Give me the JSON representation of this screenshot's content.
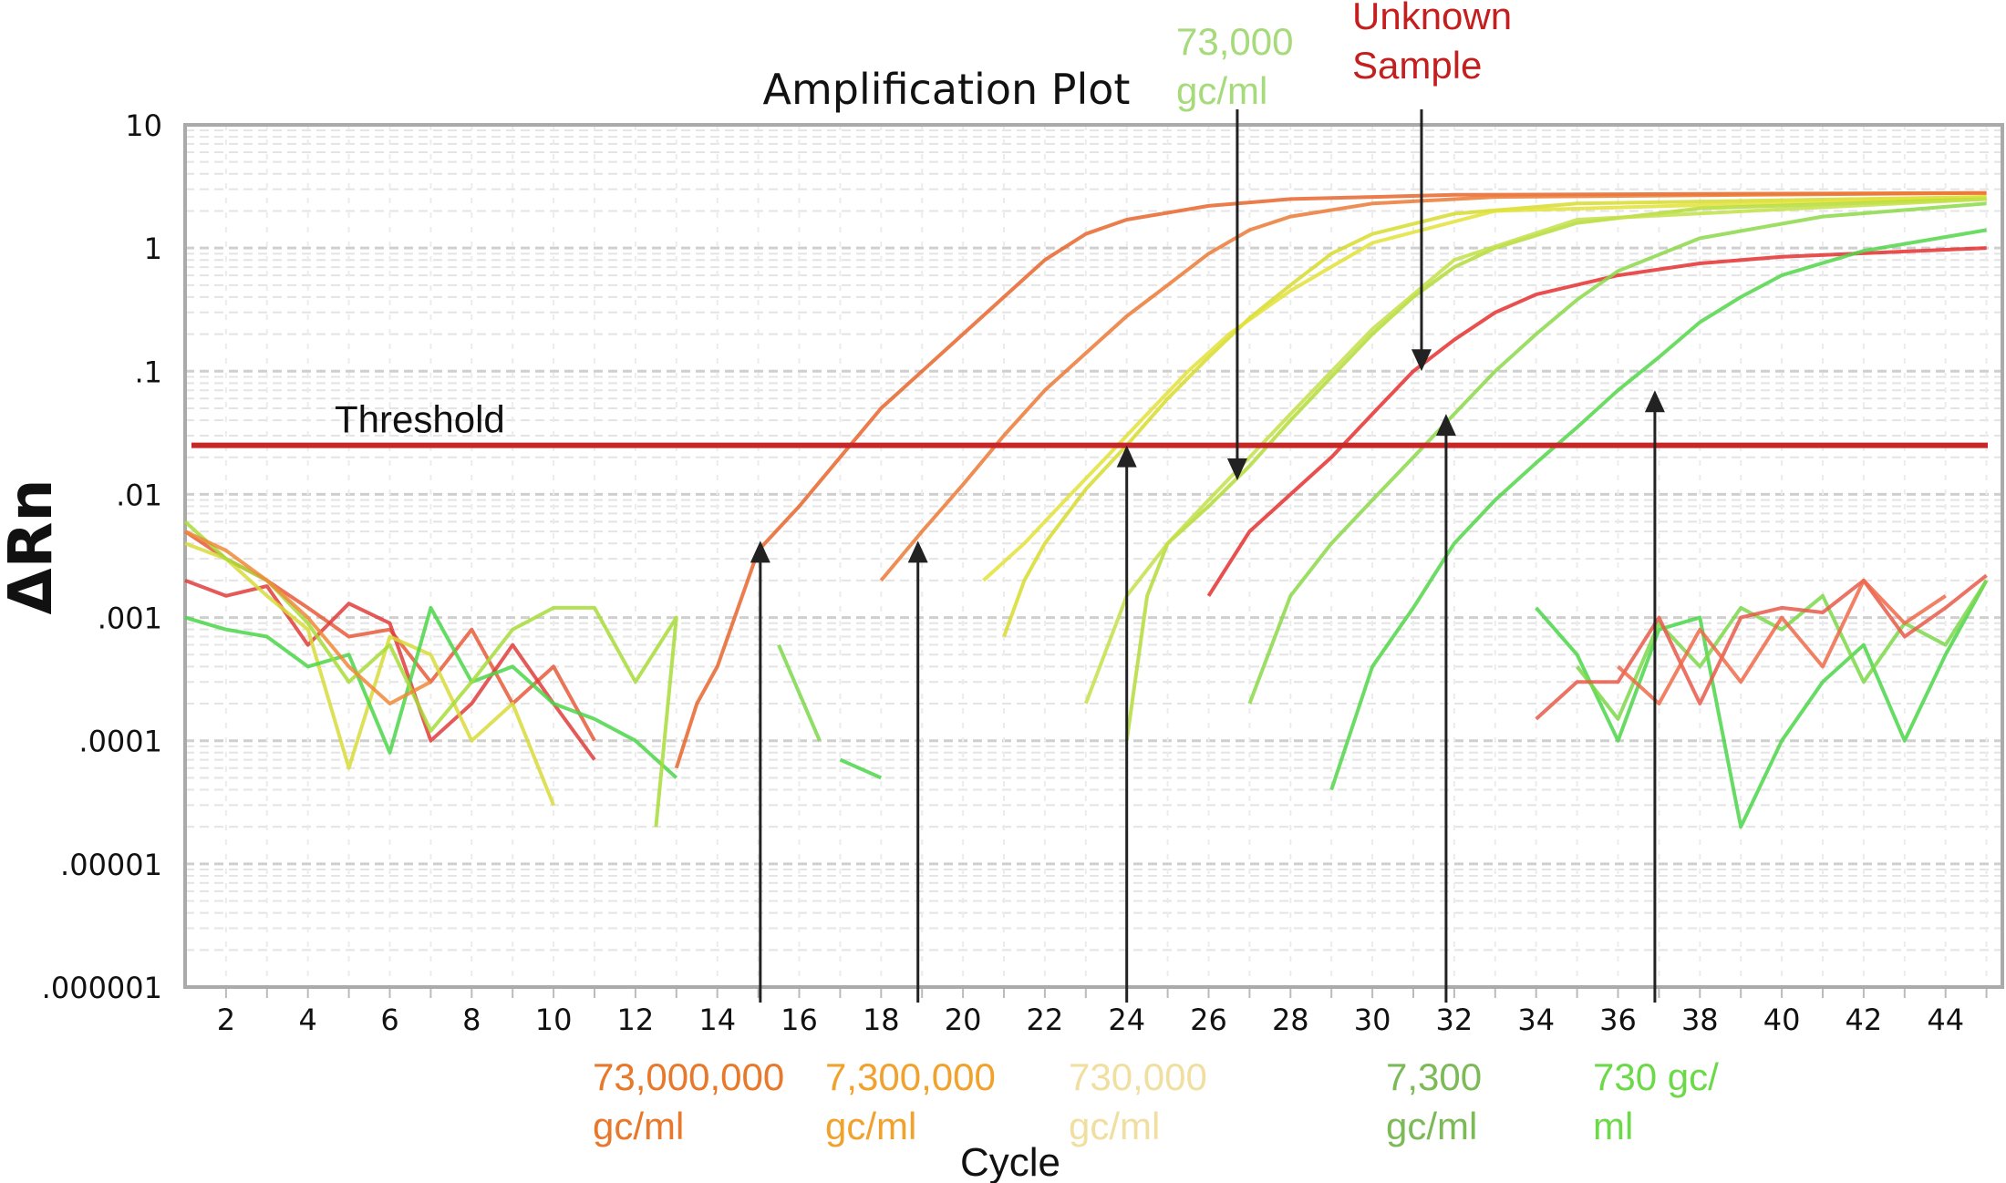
{
  "chart_data": {
    "type": "line",
    "title": "Amplification Plot",
    "xlabel": "Cycle",
    "ylabel": "ΔRn",
    "yscale": "log",
    "xlim": [
      1,
      45.4
    ],
    "ylim": [
      1e-06,
      10
    ],
    "grid": true,
    "x_ticks": [
      "2",
      "4",
      "6",
      "8",
      "10",
      "12",
      "14",
      "16",
      "18",
      "20",
      "22",
      "24",
      "26",
      "28",
      "30",
      "32",
      "34",
      "36",
      "38",
      "40",
      "42",
      "44"
    ],
    "y_ticks": [
      {
        "value": 10,
        "label": "10"
      },
      {
        "value": 1,
        "label": "1"
      },
      {
        "value": 0.1,
        "label": ".1"
      },
      {
        "value": 0.01,
        "label": ".01"
      },
      {
        "value": 0.001,
        "label": ".001"
      },
      {
        "value": 0.0001,
        "label": ".0001"
      },
      {
        "value": 1e-05,
        "label": ".00001"
      },
      {
        "value": 1e-06,
        "label": ".000001"
      }
    ],
    "threshold": {
      "label": "Threshold",
      "value": 0.025,
      "color": "#c62828"
    },
    "series": [
      {
        "color": "#e8652c",
        "points": [
          [
            13,
            6e-05
          ],
          [
            13.5,
            0.0002
          ],
          [
            14,
            0.0004
          ],
          [
            15,
            0.0035
          ],
          [
            16,
            0.008
          ],
          [
            17,
            0.02
          ],
          [
            18,
            0.05
          ],
          [
            19,
            0.1
          ],
          [
            20,
            0.2
          ],
          [
            21,
            0.4
          ],
          [
            22,
            0.8
          ],
          [
            23,
            1.3
          ],
          [
            24,
            1.7
          ],
          [
            26,
            2.2
          ],
          [
            28,
            2.5
          ],
          [
            32,
            2.7
          ],
          [
            45,
            2.8
          ]
        ]
      },
      {
        "color": "#ec7a36",
        "points": [
          [
            18,
            0.002
          ],
          [
            19,
            0.005
          ],
          [
            20,
            0.012
          ],
          [
            21,
            0.03
          ],
          [
            22,
            0.07
          ],
          [
            23,
            0.14
          ],
          [
            24,
            0.28
          ],
          [
            25,
            0.5
          ],
          [
            26,
            0.9
          ],
          [
            27,
            1.4
          ],
          [
            28,
            1.8
          ],
          [
            30,
            2.3
          ],
          [
            33,
            2.6
          ],
          [
            45,
            2.8
          ]
        ]
      },
      {
        "color": "#d6dc2e",
        "points": [
          [
            21,
            0.0007
          ],
          [
            21.5,
            0.002
          ],
          [
            22,
            0.004
          ],
          [
            23,
            0.011
          ],
          [
            24,
            0.025
          ],
          [
            25,
            0.06
          ],
          [
            26,
            0.13
          ],
          [
            27,
            0.27
          ],
          [
            28,
            0.5
          ],
          [
            29,
            0.9
          ],
          [
            30,
            1.3
          ],
          [
            32,
            1.9
          ],
          [
            35,
            2.3
          ],
          [
            45,
            2.6
          ]
        ]
      },
      {
        "color": "#e2e23a",
        "points": [
          [
            20.5,
            0.002
          ],
          [
            21.5,
            0.004
          ],
          [
            22.5,
            0.009
          ],
          [
            23.5,
            0.02
          ],
          [
            24.5,
            0.045
          ],
          [
            25.5,
            0.1
          ],
          [
            26.5,
            0.2
          ],
          [
            28,
            0.45
          ],
          [
            30,
            1.1
          ],
          [
            33,
            2.0
          ],
          [
            45,
            2.6
          ]
        ]
      },
      {
        "color": "#b4dc3a",
        "points": [
          [
            24,
            0.0001
          ],
          [
            24.5,
            0.0015
          ],
          [
            25,
            0.004
          ],
          [
            26,
            0.008
          ],
          [
            27,
            0.017
          ],
          [
            28,
            0.04
          ],
          [
            29,
            0.09
          ],
          [
            30,
            0.2
          ],
          [
            31,
            0.4
          ],
          [
            32,
            0.7
          ],
          [
            33,
            1.0
          ],
          [
            35,
            1.6
          ],
          [
            38,
            2.1
          ],
          [
            45,
            2.5
          ]
        ]
      },
      {
        "color": "#c4e04a",
        "points": [
          [
            23,
            0.0002
          ],
          [
            24,
            0.0015
          ],
          [
            25,
            0.004
          ],
          [
            26,
            0.009
          ],
          [
            27,
            0.02
          ],
          [
            28,
            0.045
          ],
          [
            30,
            0.22
          ],
          [
            32,
            0.8
          ],
          [
            35,
            1.7
          ],
          [
            45,
            2.5
          ]
        ]
      },
      {
        "color": "#e53030",
        "points": [
          [
            26,
            0.0015
          ],
          [
            27,
            0.005
          ],
          [
            28,
            0.01
          ],
          [
            29,
            0.02
          ],
          [
            30,
            0.045
          ],
          [
            31,
            0.1
          ],
          [
            32,
            0.18
          ],
          [
            33,
            0.3
          ],
          [
            34,
            0.42
          ],
          [
            36,
            0.6
          ],
          [
            38,
            0.75
          ],
          [
            40,
            0.85
          ],
          [
            45,
            1.0
          ]
        ]
      },
      {
        "color": "#8cd84a",
        "points": [
          [
            27,
            0.0002
          ],
          [
            28,
            0.0015
          ],
          [
            29,
            0.004
          ],
          [
            30,
            0.009
          ],
          [
            31,
            0.02
          ],
          [
            32,
            0.045
          ],
          [
            33,
            0.1
          ],
          [
            34,
            0.2
          ],
          [
            35,
            0.38
          ],
          [
            36,
            0.65
          ],
          [
            38,
            1.2
          ],
          [
            41,
            1.8
          ],
          [
            45,
            2.3
          ]
        ]
      },
      {
        "color": "#52d64a",
        "points": [
          [
            29,
            4e-05
          ],
          [
            30,
            0.0004
          ],
          [
            31,
            0.0012
          ],
          [
            32,
            0.004
          ],
          [
            33,
            0.009
          ],
          [
            34,
            0.018
          ],
          [
            35,
            0.035
          ],
          [
            36,
            0.07
          ],
          [
            37,
            0.13
          ],
          [
            38,
            0.25
          ],
          [
            39,
            0.4
          ],
          [
            40,
            0.6
          ],
          [
            42,
            0.95
          ],
          [
            45,
            1.4
          ]
        ]
      },
      {
        "color": "#e85a3a",
        "points": [
          [
            1,
            0.005
          ],
          [
            2,
            0.003
          ],
          [
            3,
            0.002
          ],
          [
            4,
            0.0012
          ],
          [
            5,
            0.0007
          ],
          [
            6,
            0.0008
          ],
          [
            7,
            0.0003
          ],
          [
            8,
            0.0008
          ],
          [
            9,
            0.0002
          ],
          [
            10,
            0.0004
          ],
          [
            11,
            0.0001
          ]
        ]
      },
      {
        "color": "#e03c3c",
        "points": [
          [
            1,
            0.002
          ],
          [
            2,
            0.0015
          ],
          [
            3,
            0.0018
          ],
          [
            4,
            0.0006
          ],
          [
            5,
            0.0013
          ],
          [
            6,
            0.0009
          ],
          [
            7,
            0.0001
          ],
          [
            8,
            0.0002
          ],
          [
            9,
            0.0006
          ],
          [
            10,
            0.0002
          ],
          [
            11,
            7e-05
          ]
        ]
      },
      {
        "color": "#d8dc3a",
        "points": [
          [
            1,
            0.004
          ],
          [
            2,
            0.003
          ],
          [
            3,
            0.0015
          ],
          [
            4,
            0.0008
          ],
          [
            5,
            6e-05
          ],
          [
            6,
            0.0007
          ],
          [
            7,
            0.0005
          ],
          [
            8,
            0.0001
          ],
          [
            9,
            0.0002
          ],
          [
            10,
            3e-05
          ]
        ]
      },
      {
        "color": "#4cd64a",
        "points": [
          [
            1,
            0.001
          ],
          [
            2,
            0.0008
          ],
          [
            3,
            0.0007
          ],
          [
            4,
            0.0004
          ],
          [
            5,
            0.0005
          ],
          [
            6,
            8e-05
          ],
          [
            7,
            0.0012
          ],
          [
            8,
            0.0003
          ],
          [
            9,
            0.0004
          ],
          [
            10,
            0.0002
          ],
          [
            11,
            0.00015
          ],
          [
            12,
            0.0001
          ],
          [
            13,
            5e-05
          ]
        ]
      },
      {
        "color": "#a8dc3a",
        "points": [
          [
            1,
            0.006
          ],
          [
            2,
            0.003
          ],
          [
            3,
            0.002
          ],
          [
            4,
            0.0009
          ],
          [
            5,
            0.0003
          ],
          [
            6,
            0.0006
          ],
          [
            7,
            0.00012
          ],
          [
            8,
            0.0003
          ],
          [
            9,
            0.0008
          ],
          [
            10,
            0.0012
          ],
          [
            11,
            0.0012
          ],
          [
            12,
            0.0003
          ],
          [
            13,
            0.001
          ],
          [
            12.5,
            2e-05
          ]
        ]
      },
      {
        "color": "#ee8a3a",
        "points": [
          [
            1,
            0.005
          ],
          [
            2,
            0.0035
          ],
          [
            3,
            0.002
          ],
          [
            4,
            0.001
          ],
          [
            5,
            0.0004
          ],
          [
            6,
            0.0002
          ],
          [
            7,
            0.0003
          ]
        ]
      },
      {
        "color": "#7cd84a",
        "points": [
          [
            15.5,
            0.0006
          ],
          [
            16.5,
            0.0001
          ]
        ]
      },
      {
        "color": "#4cd64a",
        "points": [
          [
            17,
            7e-05
          ],
          [
            18,
            5e-05
          ]
        ]
      },
      {
        "color": "#4cd64a",
        "points": [
          [
            34,
            0.0012
          ],
          [
            35,
            0.0005
          ],
          [
            36,
            0.0001
          ],
          [
            37,
            0.0008
          ],
          [
            38,
            0.001
          ],
          [
            39,
            2e-05
          ],
          [
            40,
            0.0001
          ],
          [
            41,
            0.0003
          ],
          [
            42,
            0.0006
          ],
          [
            43,
            0.0001
          ],
          [
            44,
            0.0005
          ],
          [
            45,
            0.002
          ]
        ]
      },
      {
        "color": "#7cd84a",
        "points": [
          [
            35,
            0.0004
          ],
          [
            36,
            0.00015
          ],
          [
            37,
            0.0009
          ],
          [
            38,
            0.0004
          ],
          [
            39,
            0.0012
          ],
          [
            40,
            0.0008
          ],
          [
            41,
            0.0015
          ],
          [
            42,
            0.0003
          ],
          [
            43,
            0.0009
          ],
          [
            44,
            0.0006
          ],
          [
            45,
            0.002
          ]
        ]
      },
      {
        "color": "#e85a4a",
        "points": [
          [
            34,
            0.00015
          ],
          [
            35,
            0.0003
          ],
          [
            36,
            0.0003
          ],
          [
            37,
            0.001
          ],
          [
            38,
            0.0002
          ],
          [
            39,
            0.001
          ],
          [
            40,
            0.0012
          ],
          [
            41,
            0.0011
          ],
          [
            42,
            0.002
          ],
          [
            43,
            0.0007
          ],
          [
            44,
            0.0012
          ],
          [
            45,
            0.0022
          ]
        ]
      },
      {
        "color": "#ee6a4a",
        "points": [
          [
            36,
            0.0004
          ],
          [
            37,
            0.0002
          ],
          [
            38,
            0.0008
          ],
          [
            39,
            0.0003
          ],
          [
            40,
            0.001
          ],
          [
            41,
            0.0004
          ],
          [
            42,
            0.002
          ],
          [
            43,
            0.0009
          ],
          [
            44,
            0.0015
          ]
        ]
      }
    ],
    "annotations": [
      {
        "lines": [
          "73,000,000",
          "gc/ml"
        ],
        "color": "#e8782a",
        "arrow": "up",
        "cycle": 15.05,
        "tip_value": 0.0042,
        "placement": "bottom"
      },
      {
        "lines": [
          "7,300,000",
          "gc/ml"
        ],
        "color": "#f0a22c",
        "arrow": "up",
        "cycle": 18.9,
        "tip_value": 0.0042,
        "placement": "bottom"
      },
      {
        "lines": [
          "730,000",
          "gc/ml"
        ],
        "color": "#f0dfa0",
        "arrow": "up",
        "cycle": 24.0,
        "tip_value": 0.025,
        "placement": "bottom"
      },
      {
        "lines": [
          "7,300",
          "gc/ml"
        ],
        "color": "#7cba58",
        "arrow": "up",
        "cycle": 31.8,
        "tip_value": 0.045,
        "placement": "bottom"
      },
      {
        "lines": [
          "730 gc/",
          "ml"
        ],
        "color": "#6cda48",
        "arrow": "up",
        "cycle": 36.9,
        "tip_value": 0.07,
        "placement": "bottom"
      },
      {
        "lines": [
          "73,000",
          "gc/ml"
        ],
        "color": "#a6da7a",
        "arrow": "down",
        "cycle": 26.7,
        "tip_value": 0.013,
        "placement": "top"
      },
      {
        "lines": [
          "Unknown",
          "Sample"
        ],
        "color": "#c41e1e",
        "arrow": "down",
        "cycle": 31.2,
        "tip_value": 0.1,
        "placement": "top"
      }
    ]
  }
}
